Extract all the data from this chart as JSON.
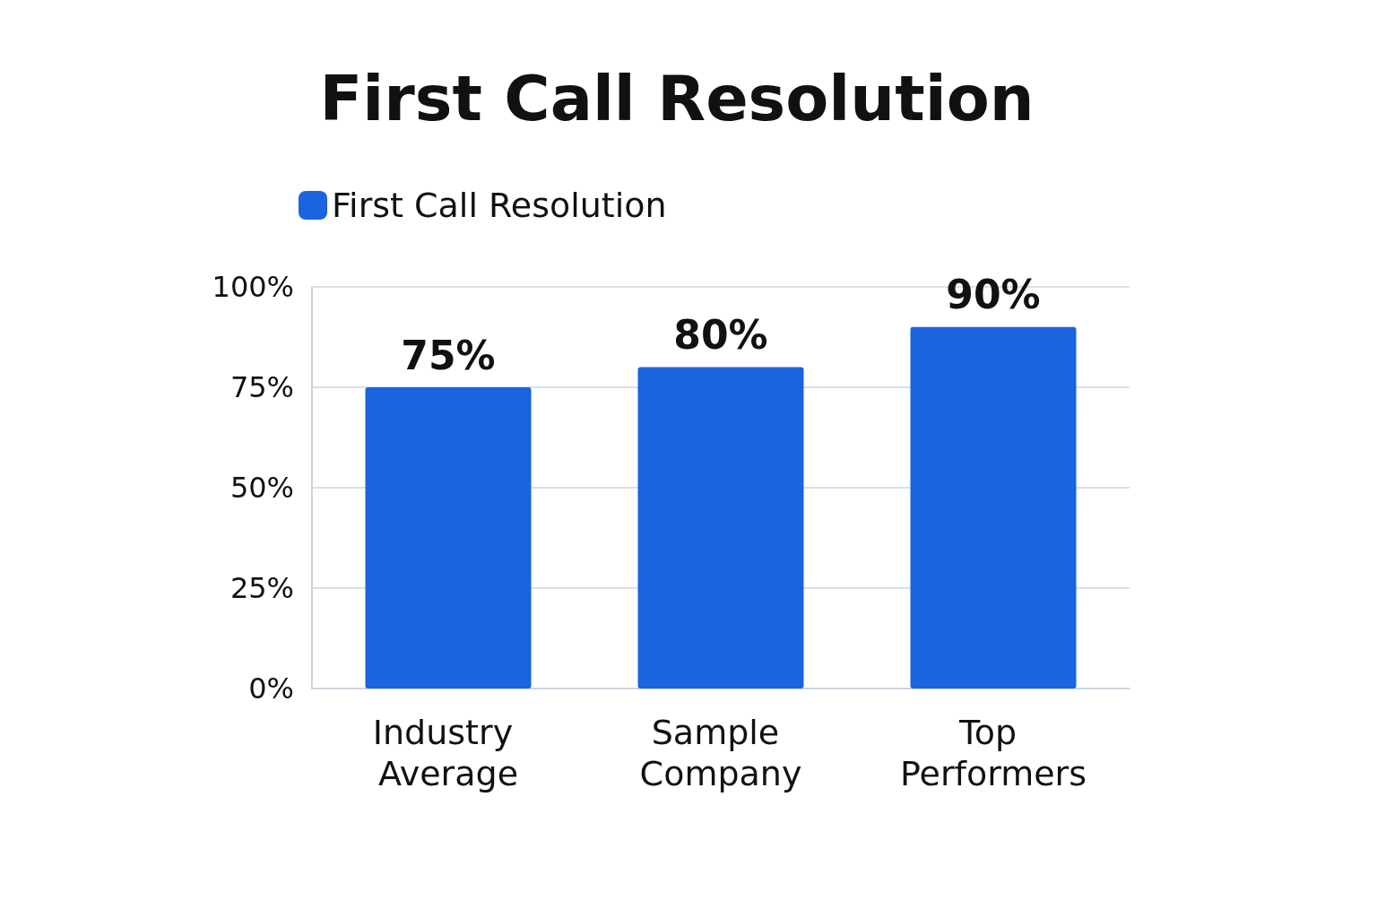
{
  "chart_data": {
    "type": "bar",
    "title": "First Call Resolution",
    "categories": [
      "Industry Average",
      "Sample Company",
      "Top Performers"
    ],
    "series": [
      {
        "name": "First Call Resolution",
        "color": "#1a64e0",
        "values": [
          75,
          80,
          90
        ],
        "value_labels": [
          "75%",
          "80%",
          "90%"
        ]
      }
    ],
    "ylim": [
      0,
      100
    ],
    "yticks": [
      {
        "value": 0,
        "label": "0%"
      },
      {
        "value": 25,
        "label": "25%"
      },
      {
        "value": 50,
        "label": "50%"
      },
      {
        "value": 75,
        "label": "75%"
      },
      {
        "value": 100,
        "label": "100%"
      }
    ],
    "grid": "y",
    "legend": "top left"
  }
}
